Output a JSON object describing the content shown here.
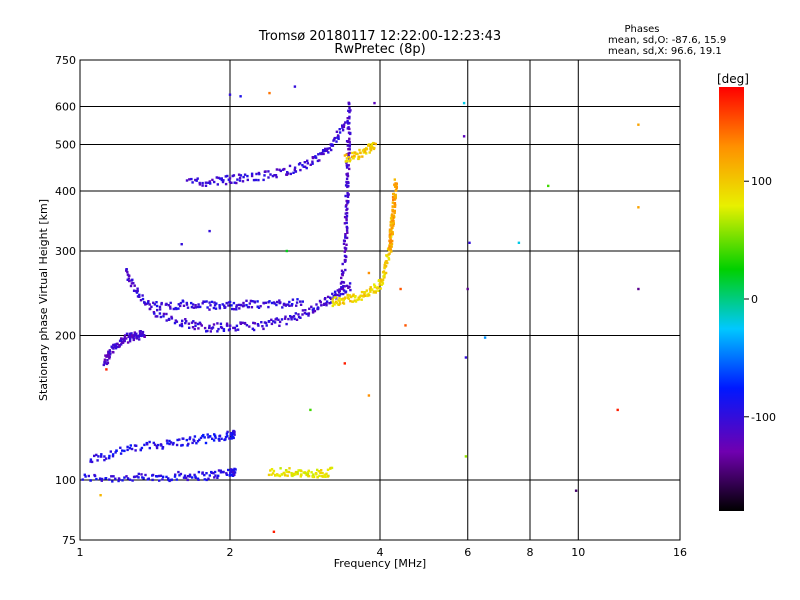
{
  "header": {
    "title_line1": "Tromsø 20180117 12:22:00-12:23:43",
    "title_line2": "RwPretec (8p)"
  },
  "stats": {
    "heading": "Phases",
    "line_o": "mean, sd,O: -87.6, 15.9",
    "line_x": "mean, sd,X:  96.6, 19.1"
  },
  "colorbar": {
    "label": "[deg]",
    "range": [
      -180,
      180
    ],
    "ticks": [
      100,
      0,
      -100
    ],
    "tick_labels": [
      "100",
      "0",
      "-100"
    ]
  },
  "chart_data": {
    "type": "scatter",
    "title": "Tromsø 20180117 12:22:00-12:23:43",
    "subtitle": "RwPretec (8p)",
    "xlabel": "Frequency [MHz]",
    "ylabel": "Stationary phase Virtual Height [km]",
    "xscale": "log",
    "yscale": "log",
    "xlim": [
      1,
      16
    ],
    "ylim": [
      75,
      750
    ],
    "xticks": [
      1,
      2,
      4,
      6,
      8,
      10,
      16
    ],
    "xtick_labels": [
      "1",
      "2",
      "4",
      "6",
      "8",
      "10",
      "16"
    ],
    "yticks": [
      75,
      100,
      200,
      300,
      400,
      500,
      600,
      750
    ],
    "ytick_labels": [
      "75",
      "100",
      "200",
      "300",
      "400",
      "500",
      "600",
      "750"
    ],
    "grid": true,
    "color_by": "phase [deg]",
    "traces": [
      {
        "x": [
          1.01,
          1.2,
          1.4,
          1.6,
          1.8,
          2.0,
          2.05
        ],
        "y": [
          101,
          101,
          101,
          102,
          102,
          104,
          104
        ],
        "phase": -95
      },
      {
        "x": [
          1.05,
          1.2,
          1.4,
          1.6,
          1.8,
          2.0,
          2.05
        ],
        "y": [
          110,
          115,
          118,
          120,
          122,
          124,
          125
        ],
        "phase": -90
      },
      {
        "x": [
          1.12,
          1.15,
          1.2,
          1.25,
          1.3,
          1.35
        ],
        "y": [
          175,
          185,
          193,
          198,
          200,
          201
        ],
        "phase": -110
      },
      {
        "x": [
          1.23,
          1.3,
          1.4,
          1.6,
          1.8,
          2.0,
          2.3,
          2.6,
          2.9,
          3.1,
          3.3,
          3.5
        ],
        "y": [
          275,
          245,
          225,
          213,
          208,
          208,
          210,
          215,
          225,
          235,
          245,
          255
        ],
        "phase": -105
      },
      {
        "x": [
          1.4,
          1.6,
          1.8,
          2.0,
          2.2,
          2.5,
          2.8
        ],
        "y": [
          230,
          232,
          231,
          231,
          232,
          233,
          236
        ],
        "phase": -100
      },
      {
        "x": [
          1.65,
          1.9,
          2.1,
          2.4,
          2.7,
          3.0,
          3.2,
          3.4
        ],
        "y": [
          415,
          420,
          425,
          432,
          445,
          465,
          500,
          550
        ],
        "phase": -105
      },
      {
        "x": [
          3.35,
          3.4,
          3.42,
          3.44,
          3.45,
          3.46,
          3.47
        ],
        "y": [
          250,
          290,
          340,
          400,
          460,
          530,
          620
        ],
        "phase": -110
      },
      {
        "x": [
          3.2,
          3.4,
          3.6,
          3.8,
          4.0,
          4.1,
          4.2,
          4.25
        ],
        "y": [
          235,
          238,
          240,
          245,
          255,
          275,
          310,
          360
        ],
        "phase": 95
      },
      {
        "x": [
          4.2,
          4.22,
          4.25,
          4.28,
          4.3
        ],
        "y": [
          300,
          330,
          360,
          390,
          420
        ],
        "phase": 120
      },
      {
        "x": [
          3.4,
          3.6,
          3.8,
          3.9
        ],
        "y": [
          465,
          475,
          490,
          495
        ],
        "phase": 100
      },
      {
        "x": [
          2.4,
          2.6,
          2.8,
          3.0,
          3.2
        ],
        "y": [
          104,
          104,
          103,
          103,
          104
        ],
        "phase": 85
      }
    ],
    "scatter_points": [
      {
        "x": 2.0,
        "y": 635,
        "phase": -100
      },
      {
        "x": 2.1,
        "y": 630,
        "phase": -90
      },
      {
        "x": 2.4,
        "y": 640,
        "phase": 140
      },
      {
        "x": 2.7,
        "y": 660,
        "phase": -100
      },
      {
        "x": 1.6,
        "y": 310,
        "phase": -100
      },
      {
        "x": 1.82,
        "y": 330,
        "phase": -100
      },
      {
        "x": 2.6,
        "y": 300,
        "phase": 20
      },
      {
        "x": 3.2,
        "y": 500,
        "phase": -95
      },
      {
        "x": 3.9,
        "y": 610,
        "phase": -120
      },
      {
        "x": 4.4,
        "y": 250,
        "phase": 150
      },
      {
        "x": 4.5,
        "y": 210,
        "phase": 150
      },
      {
        "x": 3.8,
        "y": 150,
        "phase": 130
      },
      {
        "x": 3.4,
        "y": 175,
        "phase": 170
      },
      {
        "x": 5.9,
        "y": 520,
        "phase": -120
      },
      {
        "x": 5.9,
        "y": 610,
        "phase": -20
      },
      {
        "x": 6.05,
        "y": 312,
        "phase": -100
      },
      {
        "x": 6.0,
        "y": 250,
        "phase": -140
      },
      {
        "x": 5.95,
        "y": 180,
        "phase": -100
      },
      {
        "x": 5.95,
        "y": 112,
        "phase": 60
      },
      {
        "x": 6.5,
        "y": 198,
        "phase": -40
      },
      {
        "x": 7.6,
        "y": 312,
        "phase": -20
      },
      {
        "x": 8.7,
        "y": 410,
        "phase": 40
      },
      {
        "x": 9.9,
        "y": 95,
        "phase": -150
      },
      {
        "x": 12.0,
        "y": 140,
        "phase": 170
      },
      {
        "x": 13.2,
        "y": 370,
        "phase": 120
      },
      {
        "x": 13.2,
        "y": 550,
        "phase": 120
      },
      {
        "x": 13.2,
        "y": 250,
        "phase": -140
      },
      {
        "x": 2.45,
        "y": 78,
        "phase": 170
      },
      {
        "x": 1.1,
        "y": 93,
        "phase": 110
      },
      {
        "x": 1.13,
        "y": 170,
        "phase": 170
      },
      {
        "x": 2.9,
        "y": 140,
        "phase": 40
      },
      {
        "x": 3.8,
        "y": 270,
        "phase": 130
      }
    ]
  }
}
